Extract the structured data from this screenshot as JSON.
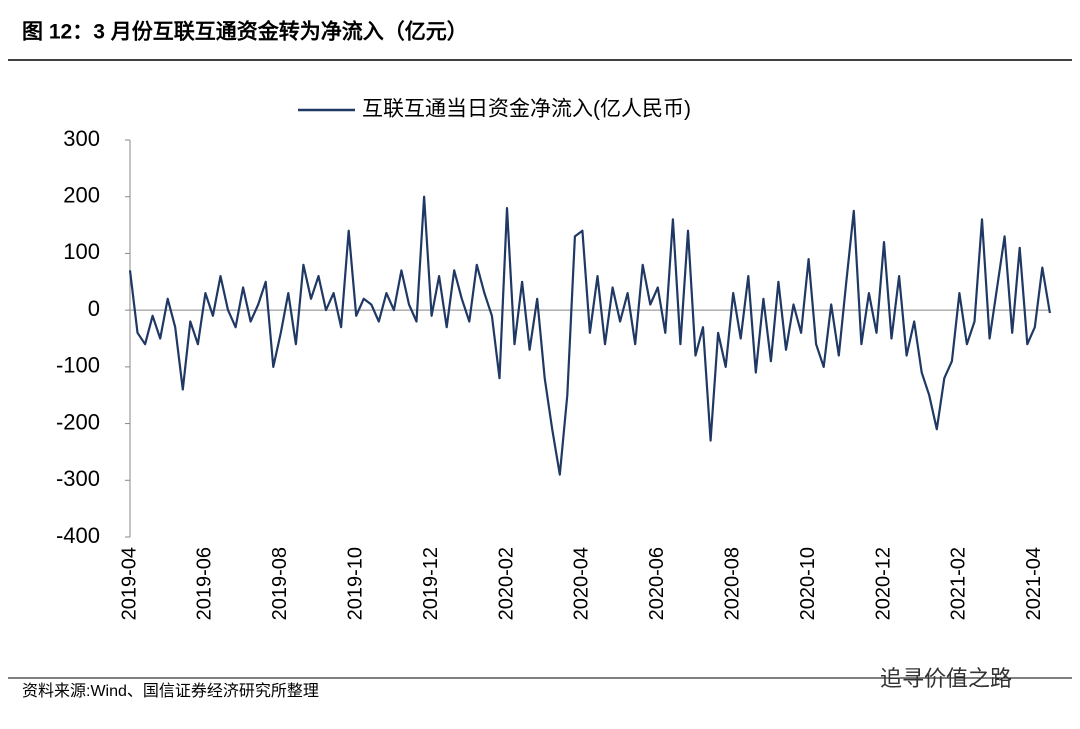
{
  "header": {
    "title": "图 12：3 月份互联互通资金转为净流入（亿元）"
  },
  "chart_data": {
    "type": "line",
    "legend": "top",
    "categories": [
      "2019-04",
      null,
      null,
      null,
      null,
      null,
      null,
      null,
      null,
      null,
      "2019-06",
      null,
      null,
      null,
      null,
      null,
      null,
      null,
      null,
      null,
      "2019-08",
      null,
      null,
      null,
      null,
      null,
      null,
      null,
      null,
      null,
      "2019-10",
      null,
      null,
      null,
      null,
      null,
      null,
      null,
      null,
      null,
      "2019-12",
      null,
      null,
      null,
      null,
      null,
      null,
      null,
      null,
      null,
      "2020-02",
      null,
      null,
      null,
      null,
      null,
      null,
      null,
      null,
      null,
      "2020-04",
      null,
      null,
      null,
      null,
      null,
      null,
      null,
      null,
      null,
      "2020-06",
      null,
      null,
      null,
      null,
      null,
      null,
      null,
      null,
      null,
      "2020-08",
      null,
      null,
      null,
      null,
      null,
      null,
      null,
      null,
      null,
      "2020-10",
      null,
      null,
      null,
      null,
      null,
      null,
      null,
      null,
      null,
      "2020-12",
      null,
      null,
      null,
      null,
      null,
      null,
      null,
      null,
      null,
      "2021-02",
      null,
      null,
      null,
      null,
      null,
      null,
      null,
      null,
      null,
      "2021-04",
      null,
      null
    ],
    "series": [
      {
        "name": "互联互通当日资金净流入(亿人民币)",
        "color": "#1f3864",
        "values": [
          70,
          -40,
          -60,
          -10,
          -50,
          20,
          -30,
          -140,
          -20,
          -60,
          30,
          -10,
          60,
          0,
          -30,
          40,
          -20,
          10,
          50,
          -100,
          -40,
          30,
          -60,
          80,
          20,
          60,
          0,
          30,
          -30,
          140,
          -10,
          20,
          10,
          -20,
          30,
          0,
          70,
          10,
          -20,
          200,
          -10,
          60,
          -30,
          70,
          20,
          -20,
          80,
          30,
          -10,
          -120,
          180,
          -60,
          50,
          -70,
          20,
          -120,
          -210,
          -290,
          -150,
          130,
          140,
          -40,
          60,
          -60,
          40,
          -20,
          30,
          -60,
          80,
          10,
          40,
          -40,
          160,
          -60,
          140,
          -80,
          -30,
          -230,
          -40,
          -100,
          30,
          -50,
          60,
          -110,
          20,
          -90,
          50,
          -70,
          10,
          -40,
          90,
          -60,
          -100,
          10,
          -80,
          50,
          175,
          -60,
          30,
          -40,
          120,
          -50,
          60,
          -80,
          -20,
          -110,
          -150,
          -210,
          -120,
          -90,
          30,
          -60,
          -20,
          160,
          -50,
          40,
          130,
          -40,
          110,
          -60,
          -30,
          75,
          -5
        ]
      }
    ],
    "ylim": [
      -400,
      300
    ],
    "yticks": [
      -400,
      -300,
      -200,
      -100,
      0,
      100,
      200,
      300
    ]
  },
  "footer": {
    "source": "资料来源:Wind、国信证券经济研究所整理",
    "watermark": "追寻价值之路"
  }
}
